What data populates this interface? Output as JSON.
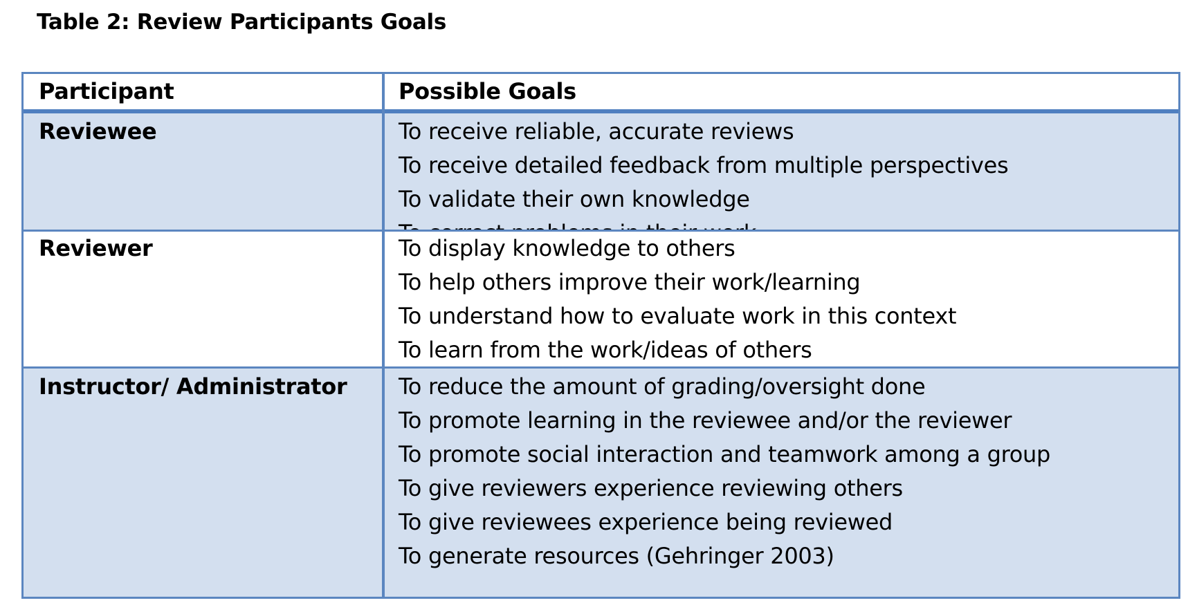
{
  "caption": "Table 2: Review Participants Goals",
  "table": {
    "headers": {
      "participant": "Participant",
      "goals": "Possible Goals"
    },
    "rows": [
      {
        "participant": "Reviewee",
        "goals": [
          "To receive reliable, accurate reviews",
          "To receive detailed feedback from multiple perspectives",
          "To validate their own knowledge",
          "To correct problems in their work"
        ]
      },
      {
        "participant": "Reviewer",
        "goals": [
          "To display knowledge to others",
          "To help others improve their work/learning",
          "To understand how to evaluate work in this context",
          "To learn from the work/ideas of others"
        ]
      },
      {
        "participant": "Instructor/ Administrator",
        "goals": [
          "To reduce the amount of grading/oversight done",
          "To promote learning in the reviewee and/or the reviewer",
          "To promote social interaction and teamwork among a group",
          "To give reviewers experience reviewing others",
          "To give reviewees experience being reviewed",
          "To generate resources (Gehringer 2003)"
        ]
      }
    ]
  },
  "colors": {
    "border": "#5b86c0",
    "header_rule": "#4f7fc0",
    "shaded_row": "#d3dfef"
  }
}
